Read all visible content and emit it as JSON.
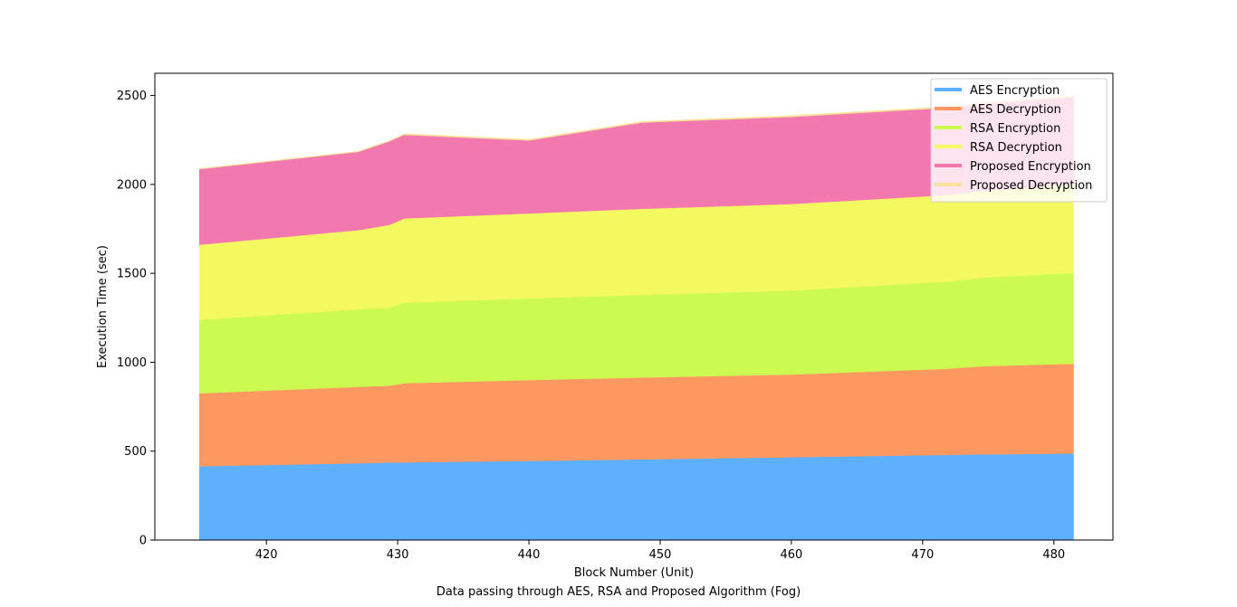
{
  "chart_data": {
    "type": "area",
    "stacked": true,
    "title": "",
    "xlabel": "Block Number (Unit)",
    "caption": "Data passing through AES, RSA and Proposed Algorithm (Fog)",
    "ylabel": "Execution Time (sec)",
    "xlim": [
      411.5,
      484.5
    ],
    "ylim": [
      0,
      2625
    ],
    "xticks": [
      420,
      430,
      440,
      450,
      460,
      470,
      480
    ],
    "yticks": [
      0,
      500,
      1000,
      1500,
      2000,
      2500
    ],
    "grid": false,
    "legend_position": "top-right",
    "x": [
      414.9,
      427,
      429.4,
      430.5,
      440,
      448.6,
      460,
      472,
      474.5,
      481.5
    ],
    "series": [
      {
        "name": "AES Encryption",
        "color": "#5fb0fc",
        "values": [
          415,
          432,
          436,
          437,
          445,
          454,
          466,
          479,
          482,
          487
        ]
      },
      {
        "name": "AES Decryption",
        "color": "#fd9960",
        "values": [
          410,
          430,
          432,
          445,
          455,
          460,
          465,
          485,
          495,
          505
        ]
      },
      {
        "name": "RSA Encryption",
        "color": "#cdfa50",
        "values": [
          413,
          436,
          440,
          453,
          459,
          465,
          472,
          490,
          499,
          510
        ]
      },
      {
        "name": "RSA Decryption",
        "color": "#f5f961",
        "values": [
          423,
          445,
          465,
          474,
          478,
          484,
          487,
          487,
          487,
          500
        ]
      },
      {
        "name": "Proposed Encryption",
        "color": "#f378b0",
        "values": [
          425,
          440,
          470,
          470,
          410,
          485,
          490,
          490,
          490,
          490
        ]
      },
      {
        "name": "Proposed Decryption",
        "color": "#f9e299",
        "values": [
          3,
          3,
          3,
          6,
          6,
          6,
          7,
          7,
          7,
          8
        ]
      }
    ]
  }
}
